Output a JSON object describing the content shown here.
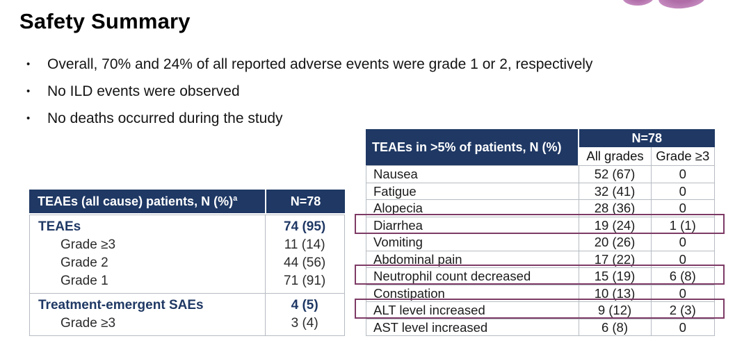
{
  "page": {
    "title": "Safety Summary"
  },
  "bullets": [
    {
      "glyph": "•",
      "text": "Overall, 70% and 24% of all reported adverse events were grade 1 or 2, respectively"
    },
    {
      "glyph": "•",
      "text": "No ILD events were observed"
    },
    {
      "glyph": "•",
      "text": "No deaths occurred during the study"
    }
  ],
  "left_table": {
    "header": {
      "label": "TEAEs (all cause) patients, N (%)",
      "superscript": "a",
      "value": "N=78"
    },
    "sections": [
      {
        "rows": [
          {
            "label": "TEAEs",
            "value": "74 (95)",
            "emphasis": true
          },
          {
            "label": "Grade ≥3",
            "value": "11 (14)",
            "emphasis": false
          },
          {
            "label": "Grade 2",
            "value": "44 (56)",
            "emphasis": false
          },
          {
            "label": "Grade 1",
            "value": "71 (91)",
            "emphasis": false
          }
        ]
      },
      {
        "rows": [
          {
            "label": "Treatment-emergent SAEs",
            "value": "4 (5)",
            "emphasis": true
          },
          {
            "label": "Grade ≥3",
            "value": "3 (4)",
            "emphasis": false
          }
        ]
      }
    ]
  },
  "right_table": {
    "header": {
      "title": "TEAEs in >5% of patients, N (%)",
      "group": "N=78",
      "col_all": "All grades",
      "col_g3": "Grade ≥3"
    },
    "rows": [
      {
        "label": "Nausea",
        "all_grades": "52 (67)",
        "grade_ge3": "0",
        "highlighted": false
      },
      {
        "label": "Fatigue",
        "all_grades": "32 (41)",
        "grade_ge3": "0",
        "highlighted": false
      },
      {
        "label": "Alopecia",
        "all_grades": "28 (36)",
        "grade_ge3": "0",
        "highlighted": false
      },
      {
        "label": "Diarrhea",
        "all_grades": "19 (24)",
        "grade_ge3": "1 (1)",
        "highlighted": true
      },
      {
        "label": "Vomiting",
        "all_grades": "20 (26)",
        "grade_ge3": "0",
        "highlighted": false
      },
      {
        "label": "Abdominal pain",
        "all_grades": "17 (22)",
        "grade_ge3": "0",
        "highlighted": false
      },
      {
        "label": "Neutrophil count decreased",
        "all_grades": "15 (19)",
        "grade_ge3": "6 (8)",
        "highlighted": true
      },
      {
        "label": "Constipation",
        "all_grades": "10 (13)",
        "grade_ge3": "0",
        "highlighted": false
      },
      {
        "label": "ALT level increased",
        "all_grades": "9 (12)",
        "grade_ge3": "2 (3)",
        "highlighted": true
      },
      {
        "label": "AST level increased",
        "all_grades": "6 (8)",
        "grade_ge3": "0",
        "highlighted": false
      }
    ]
  },
  "colors": {
    "header_navy": "#1f3864",
    "highlight_plum": "#7d3a65",
    "border_gray": "#b6bcc2",
    "logo_purple": "#b97ab3"
  }
}
